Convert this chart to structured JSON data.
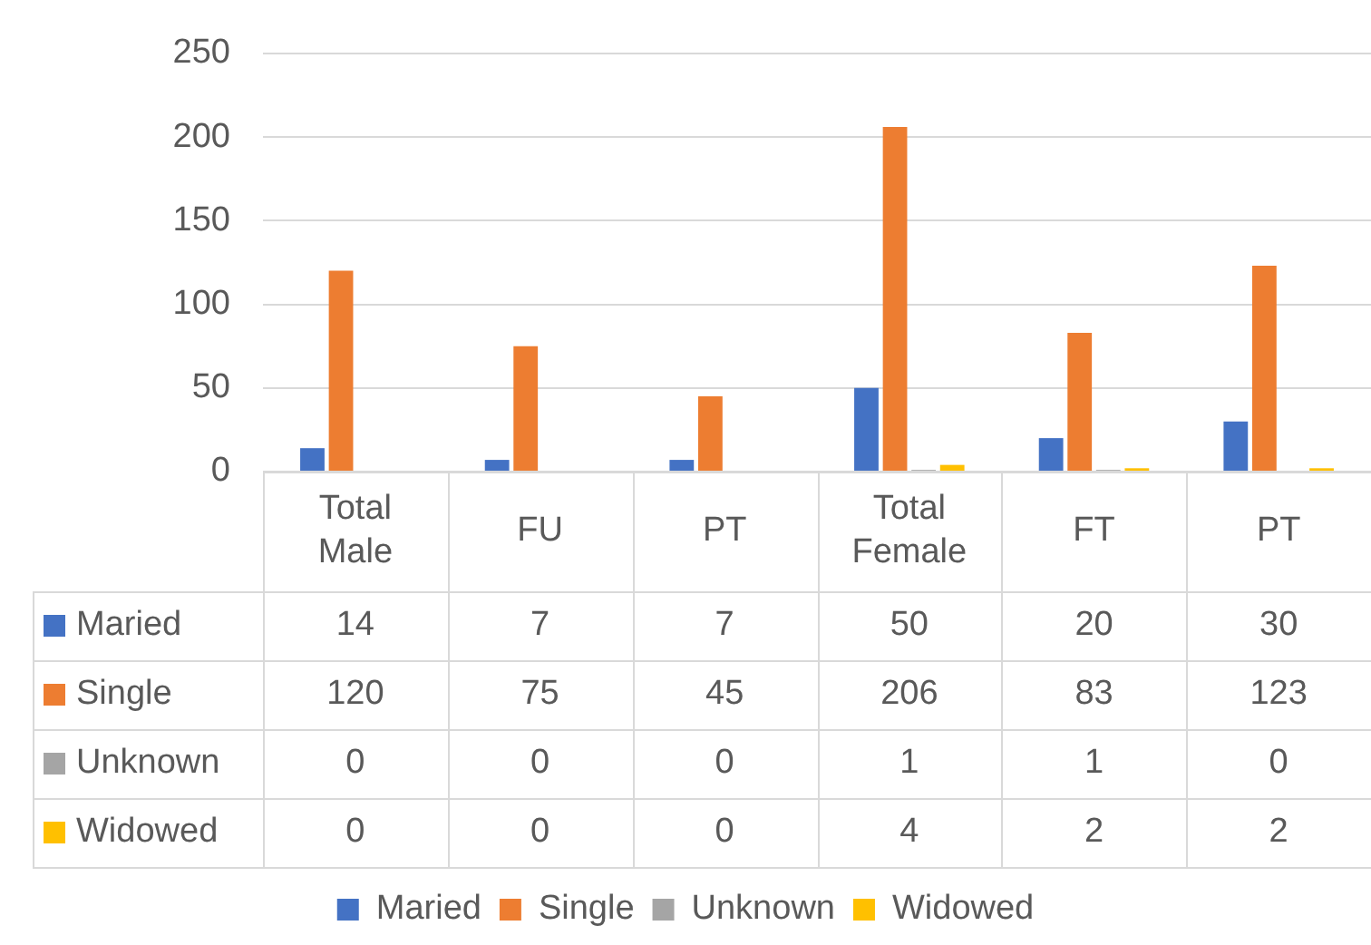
{
  "chart_data": {
    "type": "bar",
    "categories": [
      "Total Male",
      "FU",
      "PT",
      "Total Female",
      "FT",
      "PT"
    ],
    "series": [
      {
        "name": "Maried",
        "color": "#4472c4",
        "values": [
          14,
          7,
          7,
          50,
          20,
          30
        ]
      },
      {
        "name": "Single",
        "color": "#ed7d31",
        "values": [
          120,
          75,
          45,
          206,
          83,
          123
        ]
      },
      {
        "name": "Unknown",
        "color": "#a5a5a5",
        "values": [
          0,
          0,
          0,
          1,
          1,
          0
        ]
      },
      {
        "name": "Widowed",
        "color": "#ffc000",
        "values": [
          0,
          0,
          0,
          4,
          2,
          2
        ]
      }
    ],
    "ylim": [
      0,
      250
    ],
    "yticks": [
      0,
      50,
      100,
      150,
      200,
      250
    ],
    "grid": "y",
    "legend": "bottom",
    "data_labels": true
  }
}
